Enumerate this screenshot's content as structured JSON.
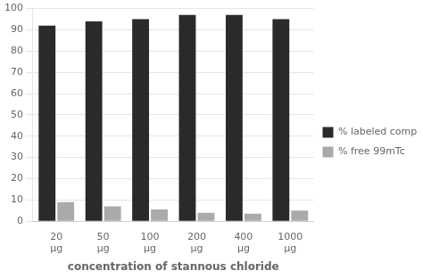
{
  "chart_data": {
    "type": "bar",
    "xlabel": "concentration of stannous chloride",
    "categories": [
      "20\nμg",
      "50\nμg",
      "100\nμg",
      "200\nμg",
      "400\nμg",
      "1000\nμg"
    ],
    "series": [
      {
        "name": "% labeled complex",
        "color": "#2a2a2a",
        "values": [
          92,
          94,
          95,
          97,
          97,
          95
        ]
      },
      {
        "name": "% free 99mTc",
        "color": "#aaaaaa",
        "values": [
          9,
          7,
          5.5,
          4,
          3.5,
          5
        ]
      }
    ],
    "ylim": [
      0,
      100
    ],
    "yticks": [
      0,
      10,
      20,
      30,
      40,
      50,
      60,
      70,
      80,
      90,
      100
    ],
    "grid": true,
    "legend": "right"
  }
}
